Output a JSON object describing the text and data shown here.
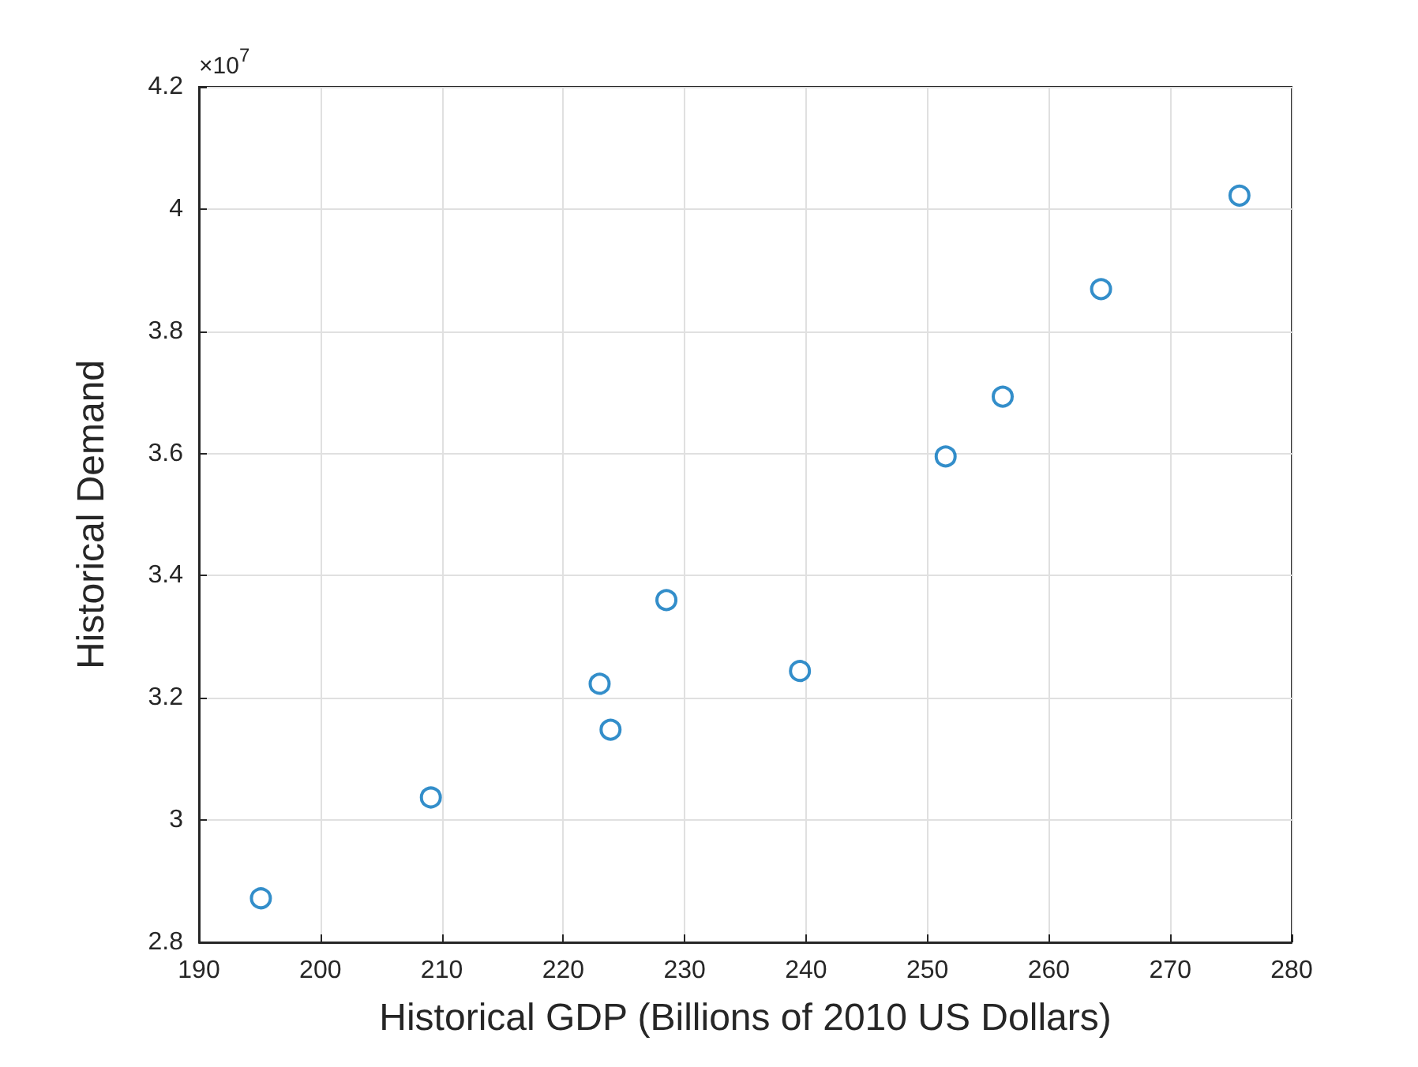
{
  "chart_data": {
    "type": "scatter",
    "xlabel": "Historical GDP (Billions of 2010 US Dollars)",
    "ylabel": "Historical Demand",
    "annotations": [
      "×10$^{7}$"
    ],
    "series": [
      {
        "color": "#0072bd",
        "x": [
          195.1,
          209.1,
          223.0,
          223.9,
          228.5,
          239.5,
          251.5,
          256.2,
          264.3,
          275.7
        ],
        "values": [
          2.872,
          3.037,
          3.223,
          3.148,
          3.36,
          3.244,
          3.595,
          3.693,
          3.869,
          4.022
        ]
      }
    ],
    "xlim": [
      190,
      280
    ],
    "xticks": [
      190,
      200,
      210,
      220,
      230,
      240,
      250,
      260,
      270,
      280
    ],
    "ylim": [
      2.8,
      4.2
    ],
    "yticks": [
      2.8,
      3,
      3.2,
      3.4,
      3.6,
      3.8,
      4,
      4.2
    ],
    "grid": true,
    "marker": "circle"
  }
}
